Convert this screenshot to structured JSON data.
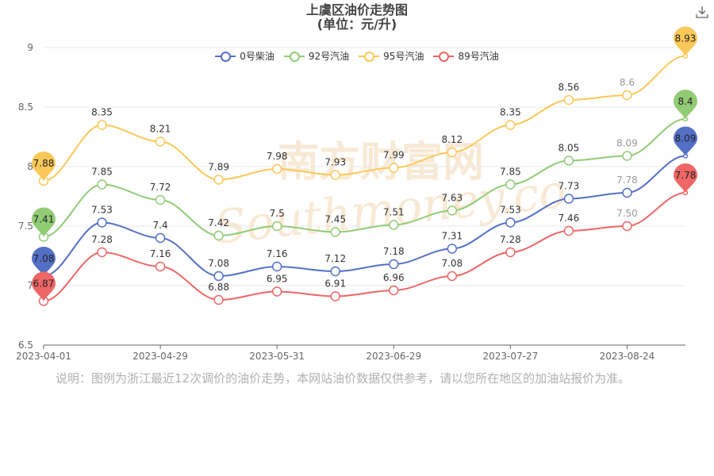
{
  "title": "上虞区油价走势图",
  "subtitle": "(单位：元/升)",
  "note": "说明：图例为浙江最近12次调价的油价走势，本网站油价数据仅供参考，请以您所在地区的加油站报价为准。",
  "watermark": {
    "text_cn": "南方财富网",
    "text_en": "Southmoney.com"
  },
  "toolbar": {
    "download_icon": "download-icon"
  },
  "chart_data": {
    "type": "line",
    "smooth": true,
    "x": [
      "2023-04-01",
      "2023-04-14",
      "2023-04-29",
      "2023-05-15",
      "2023-05-31",
      "2023-06-14",
      "2023-06-29",
      "2023-07-13",
      "2023-07-27",
      "2023-08-09",
      "2023-08-24",
      "2023-09-07"
    ],
    "xticks": [
      "2023-04-01",
      "2023-04-29",
      "2023-05-31",
      "2023-06-29",
      "2023-07-27",
      "2023-08-24"
    ],
    "ylim": [
      6.5,
      9
    ],
    "yticks": [
      "6.5",
      "7",
      "7.5",
      "8",
      "8.5",
      "9"
    ],
    "grid": true,
    "legend_position": "top-center",
    "series": [
      {
        "name": "0号柴油",
        "color": "#5470c6",
        "values": [
          7.08,
          7.53,
          7.4,
          7.08,
          7.16,
          7.12,
          7.18,
          7.31,
          7.53,
          7.73,
          7.78,
          8.09
        ],
        "labels": [
          "",
          "7.53",
          "7.4",
          "7.08",
          "7.16",
          "7.12",
          "7.18",
          "7.31",
          "7.53",
          "7.73",
          "7.78",
          ""
        ],
        "pin_first": "7.08",
        "pin_last": "8.09"
      },
      {
        "name": "92号汽油",
        "color": "#91cc75",
        "values": [
          7.41,
          7.85,
          7.72,
          7.42,
          7.5,
          7.45,
          7.51,
          7.63,
          7.85,
          8.05,
          8.09,
          8.4
        ],
        "labels": [
          "",
          "7.85",
          "7.72",
          "7.42",
          "7.5",
          "7.45",
          "7.51",
          "7.63",
          "7.85",
          "8.05",
          "8.09",
          ""
        ],
        "pin_first": "7.41",
        "pin_last": "8.4"
      },
      {
        "name": "95号汽油",
        "color": "#fac858",
        "values": [
          7.88,
          8.35,
          8.21,
          7.89,
          7.98,
          7.93,
          7.99,
          8.12,
          8.35,
          8.56,
          8.6,
          8.93
        ],
        "labels": [
          "",
          "8.35",
          "8.21",
          "7.89",
          "7.98",
          "7.93",
          "7.99",
          "8.12",
          "8.35",
          "8.56",
          "8.6",
          ""
        ],
        "pin_first": "7.88",
        "pin_last": "8.93"
      },
      {
        "name": "89号汽油",
        "color": "#ee6666",
        "values": [
          6.87,
          7.28,
          7.16,
          6.88,
          6.95,
          6.91,
          6.96,
          7.08,
          7.28,
          7.46,
          7.5,
          7.78
        ],
        "labels": [
          "",
          "7.28",
          "7.16",
          "6.88",
          "6.95",
          "6.91",
          "6.96",
          "7.08",
          "7.28",
          "7.46",
          "7.50",
          ""
        ],
        "pin_first": "6.87",
        "pin_last": "7.78"
      }
    ]
  }
}
